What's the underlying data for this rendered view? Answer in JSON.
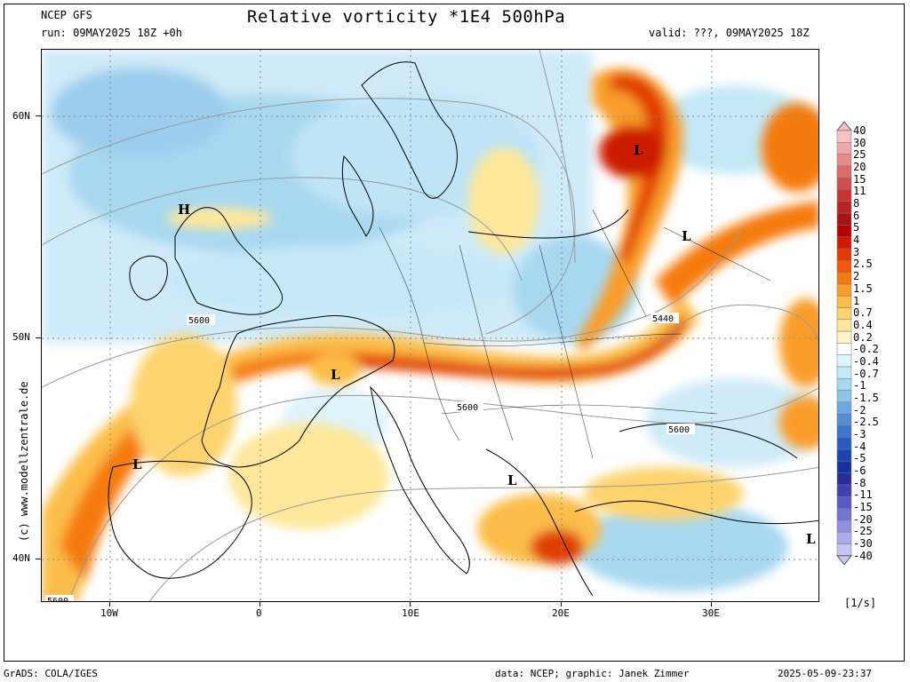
{
  "header": {
    "model": "NCEP GFS",
    "run": "run: 09MAY2025 18Z +0h",
    "title": "Relative vorticity *1E4 500hPa",
    "valid": "valid: ???, 09MAY2025 18Z"
  },
  "axes": {
    "lat_labels": [
      "60N",
      "50N",
      "40N"
    ],
    "lon_labels": [
      "10W",
      "0",
      "10E",
      "20E",
      "30E"
    ]
  },
  "credit": "(c) www.modellzentrale.de",
  "colorbar": {
    "labels": [
      "40",
      "30",
      "25",
      "20",
      "15",
      "11",
      "8",
      "6",
      "5",
      "4",
      "3",
      "2.5",
      "2",
      "1.5",
      "1",
      "0.7",
      "0.4",
      "0.2",
      "-0.2",
      "-0.4",
      "-0.7",
      "-1",
      "-1.5",
      "-2",
      "-2.5",
      "-3",
      "-4",
      "-5",
      "-6",
      "-8",
      "-11",
      "-15",
      "-20",
      "-25",
      "-30",
      "-40"
    ],
    "colors": [
      "#f4c3c3",
      "#eea8a8",
      "#e68a8a",
      "#dc6a6a",
      "#d24f4f",
      "#c63636",
      "#b82424",
      "#a81414",
      "#b20000",
      "#cc1a00",
      "#e03c00",
      "#ee5a08",
      "#f57a10",
      "#f99c2a",
      "#fbbd4a",
      "#fdd36e",
      "#fee79a",
      "#fff4c8",
      "#ffffff",
      "#dff3fb",
      "#c5e8f7",
      "#a8d8f0",
      "#8cc4ea",
      "#6ea8e2",
      "#548ed8",
      "#3d74cc",
      "#2a5cc0",
      "#1c44b0",
      "#1630a0",
      "#2a2a98",
      "#4040b0",
      "#5a5ac4",
      "#7474d4",
      "#9090e0",
      "#acacea",
      "#c6c6f2"
    ],
    "unit": "[1/s]"
  },
  "map_labels": {
    "contours": [
      "5600",
      "5440",
      "5600",
      "5600",
      "5600"
    ],
    "lows": [
      "L",
      "L",
      "L",
      "L",
      "L",
      "L"
    ],
    "highs": [
      "H"
    ]
  },
  "footer": {
    "left": "GrADS: COLA/IGES",
    "middle": "data: NCEP; graphic: Janek Zimmer",
    "right": "2025-05-09-23:37"
  }
}
